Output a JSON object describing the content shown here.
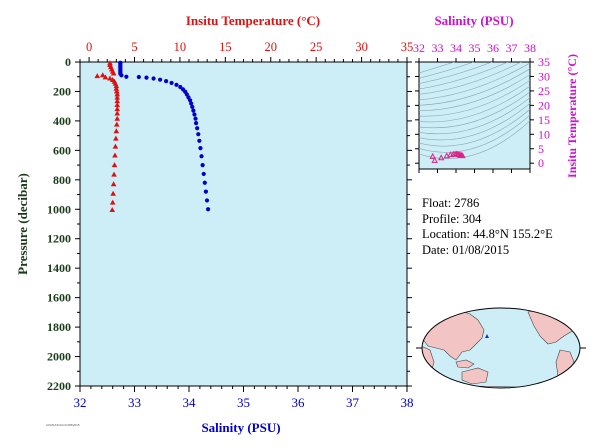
{
  "colors": {
    "background": "#cdeef7",
    "salinity": "#0000cc",
    "temperature": "#dd1111",
    "pressure_axis": "#1a3a1a",
    "inset_axis": "#cc11cc",
    "inset_marker": "#dd2288",
    "contour": "#8aa6ae",
    "land": "#f2c4c4",
    "ocean": "#cdeef7"
  },
  "chart_data": [
    {
      "type": "scatter",
      "title": "",
      "top_xlabel": "Insitu Temperature (°C)",
      "bottom_xlabel": "Salinity (PSU)",
      "ylabel": "Pressure (decibar)",
      "salinity_lim": [
        32,
        38
      ],
      "salinity_ticks": [
        32,
        33,
        34,
        35,
        36,
        37,
        38
      ],
      "temperature_lim": [
        -1,
        35
      ],
      "temperature_ticks": [
        0,
        5,
        10,
        15,
        20,
        25,
        30,
        35
      ],
      "pressure_lim": [
        0,
        2200
      ],
      "pressure_ticks": [
        0,
        200,
        400,
        600,
        800,
        1000,
        1200,
        1400,
        1600,
        1800,
        2000,
        2200
      ],
      "y_inverted": true,
      "grid": false,
      "series": [
        {
          "axis": "salinity",
          "marker": "circle",
          "points": [
            [
              32.74,
              5
            ],
            [
              32.74,
              10
            ],
            [
              32.74,
              20
            ],
            [
              32.74,
              30
            ],
            [
              32.74,
              40
            ],
            [
              32.74,
              50
            ],
            [
              32.74,
              60
            ],
            [
              32.74,
              70
            ],
            [
              32.74,
              80
            ],
            [
              32.76,
              90
            ],
            [
              32.85,
              100
            ],
            [
              33.08,
              102
            ],
            [
              33.22,
              106
            ],
            [
              33.35,
              112
            ],
            [
              33.47,
              120
            ],
            [
              33.58,
              130
            ],
            [
              33.68,
              142
            ],
            [
              33.77,
              155
            ],
            [
              33.84,
              170
            ],
            [
              33.89,
              186
            ],
            [
              33.93,
              202
            ],
            [
              33.96,
              220
            ],
            [
              33.99,
              240
            ],
            [
              34.02,
              260
            ],
            [
              34.04,
              282
            ],
            [
              34.06,
              305
            ],
            [
              34.08,
              330
            ],
            [
              34.1,
              357
            ],
            [
              34.12,
              385
            ],
            [
              34.13,
              415
            ],
            [
              34.15,
              450
            ],
            [
              34.17,
              490
            ],
            [
              34.19,
              535
            ],
            [
              34.21,
              585
            ],
            [
              34.23,
              640
            ],
            [
              34.25,
              700
            ],
            [
              34.27,
              760
            ],
            [
              34.29,
              820
            ],
            [
              34.31,
              880
            ],
            [
              34.33,
              940
            ],
            [
              34.35,
              1000
            ]
          ]
        },
        {
          "axis": "temperature",
          "marker": "triangle",
          "points": [
            [
              2.3,
              8
            ],
            [
              2.3,
              20
            ],
            [
              2.4,
              35
            ],
            [
              2.5,
              50
            ],
            [
              2.6,
              65
            ],
            [
              2.7,
              78
            ],
            [
              1.5,
              90
            ],
            [
              0.9,
              96
            ],
            [
              1.8,
              104
            ],
            [
              2.3,
              112
            ],
            [
              2.6,
              122
            ],
            [
              2.8,
              134
            ],
            [
              2.9,
              148
            ],
            [
              3.0,
              164
            ],
            [
              3.0,
              182
            ],
            [
              3.05,
              200
            ],
            [
              3.1,
              220
            ],
            [
              3.1,
              242
            ],
            [
              3.1,
              266
            ],
            [
              3.1,
              292
            ],
            [
              3.1,
              320
            ],
            [
              3.1,
              350
            ],
            [
              3.1,
              385
            ],
            [
              3.05,
              425
            ],
            [
              3.0,
              470
            ],
            [
              2.95,
              520
            ],
            [
              2.9,
              575
            ],
            [
              2.85,
              635
            ],
            [
              2.8,
              700
            ],
            [
              2.75,
              765
            ],
            [
              2.7,
              830
            ],
            [
              2.65,
              895
            ],
            [
              2.6,
              955
            ],
            [
              2.55,
              1005
            ]
          ]
        }
      ]
    },
    {
      "type": "scatter",
      "title": "",
      "top_xlabel": "Salinity (PSU)",
      "right_ylabel": "Insitu Temperature (°C)",
      "xlim": [
        32,
        38
      ],
      "xticks": [
        32,
        33,
        34,
        35,
        36,
        37,
        38
      ],
      "ylim": [
        -2,
        35
      ],
      "yticks": [
        0,
        5,
        10,
        15,
        20,
        25,
        30,
        35
      ],
      "contours": "density isopleths",
      "series": [
        {
          "marker": "triangle",
          "points": [
            [
              32.74,
              2.3
            ],
            [
              32.85,
              0.9
            ],
            [
              33.2,
              1.8
            ],
            [
              33.5,
              2.5
            ],
            [
              33.7,
              2.9
            ],
            [
              33.85,
              3.05
            ],
            [
              33.95,
              3.1
            ],
            [
              34.03,
              3.1
            ],
            [
              34.1,
              3.05
            ],
            [
              34.17,
              2.9
            ],
            [
              34.23,
              2.75
            ],
            [
              34.29,
              2.65
            ],
            [
              34.35,
              2.55
            ]
          ]
        }
      ]
    }
  ],
  "info": {
    "float": "Float:  2786",
    "profile": "Profile:  304",
    "location": "Location:  44.8°N  155.2°E",
    "date": "Date:  01/08/2015"
  },
  "map": {
    "marker_location": [
      155.2,
      44.8
    ]
  },
  "credit_text": "AOML/NOAA 01/08/2015"
}
